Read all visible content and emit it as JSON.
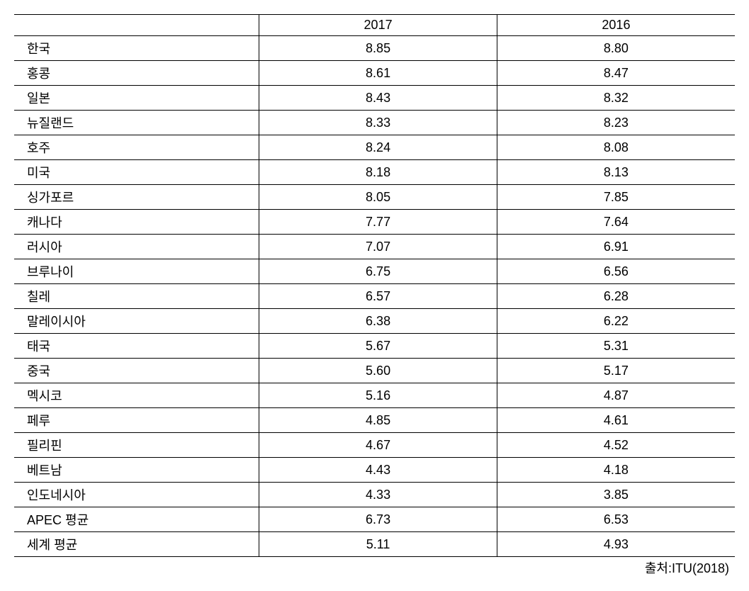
{
  "table": {
    "type": "table",
    "columns": [
      "",
      "2017",
      "2016"
    ],
    "column_widths_percent": [
      34,
      33,
      33
    ],
    "header_alignment": "center",
    "country_alignment": "left",
    "value_alignment": "center",
    "border_color": "#000000",
    "background_color": "#ffffff",
    "font_size": 18,
    "rows": [
      {
        "country": "한국",
        "v2017": "8.85",
        "v2016": "8.80"
      },
      {
        "country": "홍콩",
        "v2017": "8.61",
        "v2016": "8.47"
      },
      {
        "country": "일본",
        "v2017": "8.43",
        "v2016": "8.32"
      },
      {
        "country": "뉴질랜드",
        "v2017": "8.33",
        "v2016": "8.23"
      },
      {
        "country": "호주",
        "v2017": "8.24",
        "v2016": "8.08"
      },
      {
        "country": "미국",
        "v2017": "8.18",
        "v2016": "8.13"
      },
      {
        "country": "싱가포르",
        "v2017": "8.05",
        "v2016": "7.85"
      },
      {
        "country": "캐나다",
        "v2017": "7.77",
        "v2016": "7.64"
      },
      {
        "country": "러시아",
        "v2017": "7.07",
        "v2016": "6.91"
      },
      {
        "country": "브루나이",
        "v2017": "6.75",
        "v2016": "6.56"
      },
      {
        "country": "칠레",
        "v2017": "6.57",
        "v2016": "6.28"
      },
      {
        "country": "말레이시아",
        "v2017": "6.38",
        "v2016": "6.22"
      },
      {
        "country": "태국",
        "v2017": "5.67",
        "v2016": "5.31"
      },
      {
        "country": "중국",
        "v2017": "5.60",
        "v2016": "5.17"
      },
      {
        "country": "멕시코",
        "v2017": "5.16",
        "v2016": "4.87"
      },
      {
        "country": "페루",
        "v2017": "4.85",
        "v2016": "4.61"
      },
      {
        "country": "필리핀",
        "v2017": "4.67",
        "v2016": "4.52"
      },
      {
        "country": "베트남",
        "v2017": "4.43",
        "v2016": "4.18"
      },
      {
        "country": "인도네시아",
        "v2017": "4.33",
        "v2016": "3.85"
      },
      {
        "country": "APEC 평균",
        "v2017": "6.73",
        "v2016": "6.53"
      },
      {
        "country": "세계 평균",
        "v2017": "5.11",
        "v2016": "4.93"
      }
    ]
  },
  "source": "출처:ITU(2018)"
}
